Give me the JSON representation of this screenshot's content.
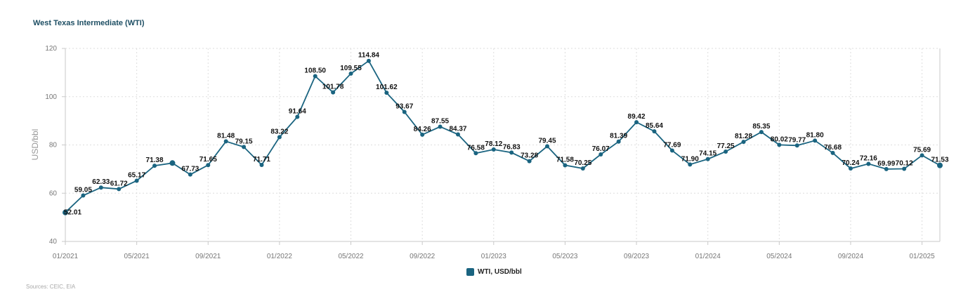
{
  "title": "West Texas Intermediate (WTI)",
  "source": "Sources: CEIC, EIA",
  "legend": {
    "label": "WTI, USD/bbl",
    "color": "#1a6480"
  },
  "chart_data": {
    "type": "line",
    "ylabel": "USD/bbl",
    "ylim": [
      40,
      120
    ],
    "yticks": [
      40,
      60,
      80,
      100,
      120
    ],
    "xtick_labels": [
      "01/2021",
      "05/2021",
      "09/2021",
      "01/2022",
      "05/2022",
      "09/2022",
      "01/2023",
      "05/2023",
      "09/2023",
      "01/2024",
      "05/2024",
      "09/2024",
      "01/2025"
    ],
    "grid": true,
    "legend_position": "bottom",
    "series": [
      {
        "name": "WTI, USD/bbl",
        "color": "#1a6480",
        "x": [
          "01/2021",
          "02/2021",
          "03/2021",
          "04/2021",
          "05/2021",
          "06/2021",
          "07/2021",
          "08/2021",
          "09/2021",
          "10/2021",
          "11/2021",
          "12/2021",
          "01/2022",
          "02/2022",
          "03/2022",
          "04/2022",
          "05/2022",
          "06/2022",
          "07/2022",
          "08/2022",
          "09/2022",
          "10/2022",
          "11/2022",
          "12/2022",
          "01/2023",
          "02/2023",
          "03/2023",
          "04/2023",
          "05/2023",
          "06/2023",
          "07/2023",
          "08/2023",
          "09/2023",
          "10/2023",
          "11/2023",
          "12/2023",
          "01/2024",
          "02/2024",
          "03/2024",
          "04/2024",
          "05/2024",
          "06/2024",
          "07/2024",
          "08/2024",
          "09/2024",
          "10/2024",
          "11/2024",
          "12/2024",
          "01/2025",
          "02/2025"
        ],
        "values": [
          52.01,
          59.05,
          62.33,
          61.72,
          65.17,
          71.38,
          72.5,
          67.73,
          71.65,
          81.48,
          79.15,
          71.71,
          83.22,
          91.64,
          108.5,
          101.78,
          109.55,
          114.84,
          101.62,
          93.67,
          84.26,
          87.55,
          84.37,
          76.58,
          78.12,
          76.83,
          73.28,
          79.45,
          71.58,
          70.25,
          76.07,
          81.39,
          89.42,
          85.64,
          77.69,
          71.9,
          74.15,
          77.25,
          81.28,
          85.35,
          80.02,
          79.77,
          81.8,
          76.68,
          70.24,
          72.16,
          69.99,
          70.12,
          75.69,
          71.53
        ],
        "labels": [
          "52.01",
          "59.05",
          "62.33",
          "61.72",
          "65.17",
          "71.38",
          "",
          "67.73",
          "71.65",
          "81.48",
          "79.15",
          "71.71",
          "83.22",
          "91.64",
          "108.50",
          "101.78",
          "109.55",
          "114.84",
          "101.62",
          "93.67",
          "84.26",
          "87.55",
          "84.37",
          "76.58",
          "78.12",
          "76.83",
          "73.28",
          "79.45",
          "71.58",
          "70.25",
          "76.07",
          "81.39",
          "89.42",
          "85.64",
          "77.69",
          "71.90",
          "74.15",
          "77.25",
          "81.28",
          "85.35",
          "80.02",
          "79.77",
          "81.80",
          "76.68",
          "70.24",
          "72.16",
          "69.99",
          "70.12",
          "75.69",
          "71.53"
        ]
      }
    ]
  }
}
